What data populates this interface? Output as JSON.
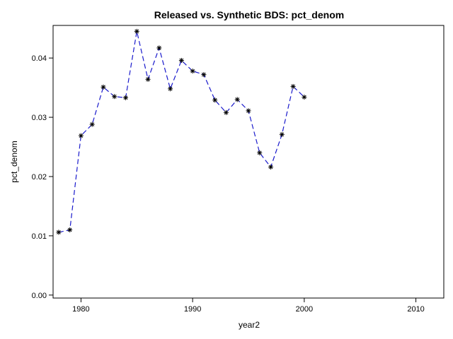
{
  "chart_data": {
    "type": "line",
    "title": "Released vs. Synthetic BDS: pct_denom",
    "xlabel": "year2",
    "ylabel": "pct_denom",
    "xlim": [
      1977.5,
      2012.5
    ],
    "ylim": [
      -0.0005,
      0.0455
    ],
    "xticks": [
      1980,
      1990,
      2000,
      2010
    ],
    "xtick_labels": [
      "1980",
      "1990",
      "2000",
      "2010"
    ],
    "yticks": [
      0.0,
      0.01,
      0.02,
      0.03,
      0.04
    ],
    "ytick_labels": [
      "0.00",
      "0.01",
      "0.02",
      "0.03",
      "0.04"
    ],
    "grid": false,
    "legend": "none",
    "series": [
      {
        "marker": "asterisk",
        "line_style": "dashed",
        "color": "#1a1acc",
        "marker_color": "#000000",
        "x": [
          1978,
          1979,
          1980,
          1981,
          1982,
          1983,
          1984,
          1985,
          1986,
          1987,
          1988,
          1989,
          1990,
          1991,
          1992,
          1993,
          1994,
          1995,
          1996,
          1997,
          1998,
          1999,
          2000
        ],
        "y": [
          0.0106,
          0.011,
          0.0269,
          0.0288,
          0.0351,
          0.0335,
          0.0333,
          0.0445,
          0.0364,
          0.0417,
          0.0348,
          0.0396,
          0.0378,
          0.0372,
          0.0329,
          0.0308,
          0.033,
          0.0311,
          0.024,
          0.0216,
          0.0271,
          0.0352,
          0.0334
        ]
      }
    ]
  }
}
